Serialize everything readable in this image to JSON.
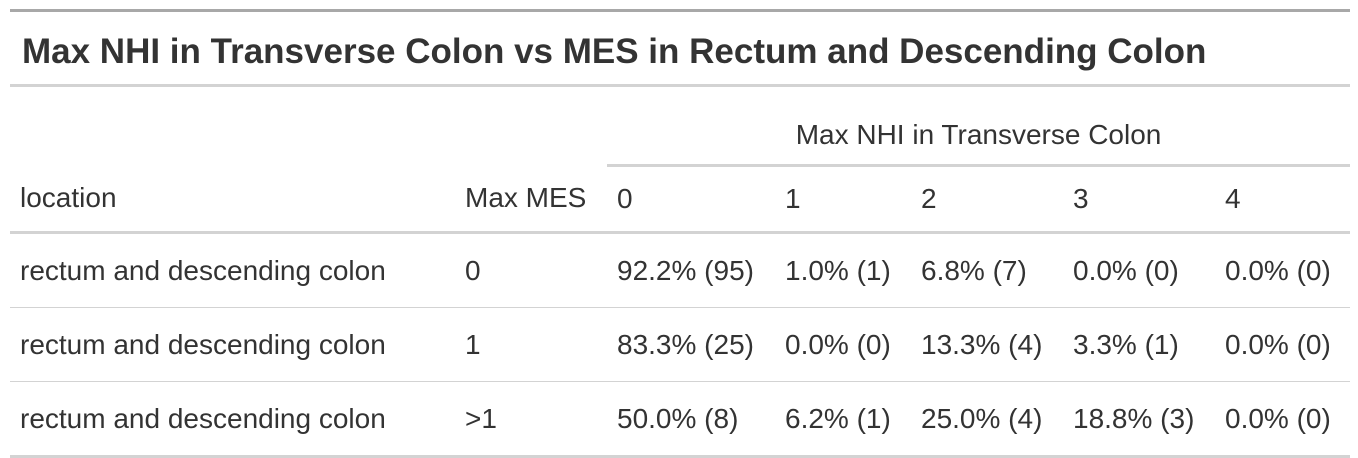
{
  "title": "Max NHI in Transverse Colon vs MES in Rectum and Descending Colon",
  "spanner_label": "Max NHI in Transverse Colon",
  "columns": [
    "location",
    "Max MES",
    "0",
    "1",
    "2",
    "3",
    "4"
  ],
  "rows": [
    {
      "location": "rectum and descending colon",
      "max_mes": "0",
      "cells": [
        "92.2% (95)",
        "1.0% (1)",
        "6.8% (7)",
        "0.0% (0)",
        "0.0% (0)"
      ]
    },
    {
      "location": "rectum and descending colon",
      "max_mes": "1",
      "cells": [
        "83.3% (25)",
        "0.0% (0)",
        "13.3% (4)",
        "3.3% (1)",
        "0.0% (0)"
      ]
    },
    {
      "location": "rectum and descending colon",
      "max_mes": ">1",
      "cells": [
        "50.0% (8)",
        "6.2% (1)",
        "25.0% (4)",
        "18.8% (3)",
        "0.0% (0)"
      ]
    }
  ]
}
